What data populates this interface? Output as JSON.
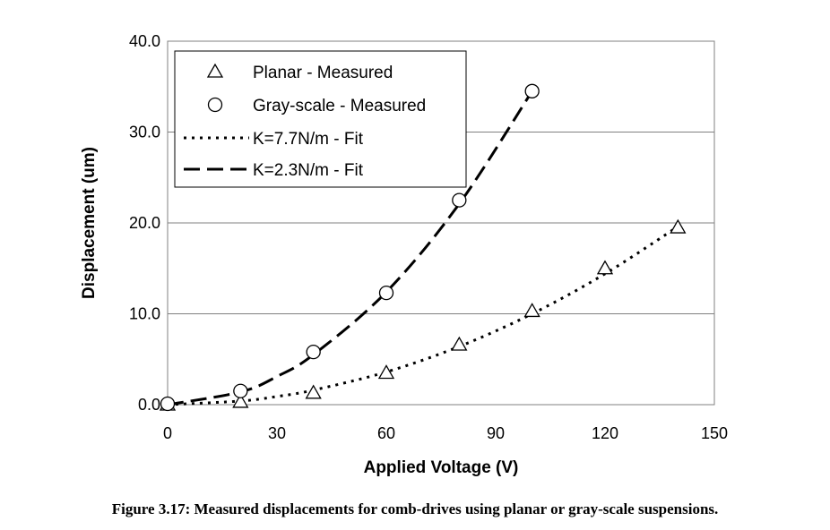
{
  "caption": "Figure 3.17: Measured displacements for comb-drives using planar or gray-scale suspensions.",
  "chart_data": {
    "type": "scatter",
    "xlabel": "Applied Voltage (V)",
    "ylabel": "Displacement (um)",
    "xlim": [
      0,
      150
    ],
    "ylim": [
      0,
      40
    ],
    "x_ticks": [
      "0",
      "30",
      "60",
      "90",
      "120",
      "150"
    ],
    "y_ticks": [
      "0.0",
      "10.0",
      "20.0",
      "30.0",
      "40.0"
    ],
    "grid": "horizontal",
    "legend_position": "top-left",
    "series": [
      {
        "name": "Planar - Measured",
        "kind": "marker",
        "marker": "triangle",
        "x": [
          0,
          20,
          40,
          60,
          80,
          100,
          120,
          140
        ],
        "y": [
          0.0,
          0.3,
          1.3,
          3.5,
          6.6,
          10.3,
          15.0,
          19.5
        ]
      },
      {
        "name": "Gray-scale - Measured",
        "kind": "marker",
        "marker": "circle",
        "x": [
          0,
          20,
          40,
          60,
          80,
          100
        ],
        "y": [
          0.1,
          1.5,
          5.8,
          12.3,
          22.5,
          34.5
        ]
      },
      {
        "name": "K=7.7N/m - Fit",
        "kind": "line",
        "dash": "dotted",
        "x": [
          0,
          20,
          30,
          40,
          60,
          80,
          100,
          120,
          140
        ],
        "y": [
          0.0,
          0.4,
          0.9,
          1.6,
          3.6,
          6.4,
          10.0,
          14.4,
          19.6
        ]
      },
      {
        "name": "K=2.3N/m - Fit",
        "kind": "line",
        "dash": "dashed",
        "x": [
          0,
          20,
          30,
          40,
          60,
          80,
          100
        ],
        "y": [
          0.0,
          1.4,
          3.1,
          5.5,
          12.4,
          22.1,
          34.5
        ]
      }
    ]
  }
}
